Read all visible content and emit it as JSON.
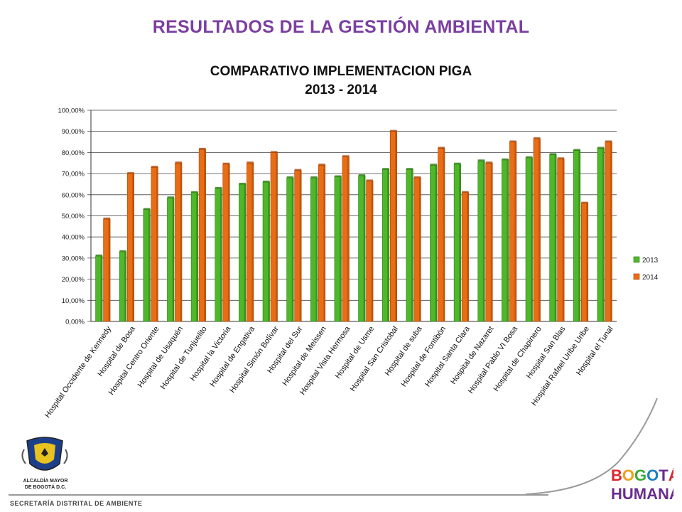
{
  "header": {
    "title": "RESULTADOS DE LA GESTIÓN AMBIENTAL"
  },
  "footer": {
    "left_logo_caption_line1": "ALCALDÍA MAYOR",
    "left_logo_caption_line2": "DE BOGOTÁ D.C.",
    "secretaria": "SECRETARÍA DISTRITAL DE AMBIENTE",
    "right_logo_line1": "BOGOTÁ",
    "right_logo_line2": "HUMANA"
  },
  "colors": {
    "title": "#7b3fa0",
    "series_2013": "#4fb82a",
    "series_2014": "#e96d15",
    "grid": "#444444"
  },
  "chart_data": {
    "type": "bar",
    "title_line1": "COMPARATIVO IMPLEMENTACION PIGA",
    "title_line2": "2013 - 2014",
    "xlabel": "",
    "ylabel": "",
    "ylim": [
      0,
      100
    ],
    "y_ticks": [
      "0,00%",
      "10,00%",
      "20,00%",
      "30,00%",
      "40,00%",
      "50,00%",
      "60,00%",
      "70,00%",
      "80,00%",
      "90,00%",
      "100,00%"
    ],
    "grid": true,
    "legend_position": "right",
    "categories": [
      "Hospital Occidente de Kennedy",
      "Hospital de Bosa",
      "Hospital Centro Oriente",
      "Hospital de Usaquén",
      "Hospital de Tunjuelito",
      "Hospital la Victoria",
      "Hospital de Engativa",
      "Hospital Simón Bolívar",
      "Hospital del Sur",
      "Hospital de Meissen",
      "Hospital Vista Hermosa",
      "Hospital de Usme",
      "Hospital San Cristobal",
      "Hospital de suba",
      "Hospital de Fontibón",
      "Hospital Santa Clara",
      "Hospital de Nazaret",
      "Hospital Pablo VI Bosa",
      "Hospital de Chapinero",
      "Hospital San Blas",
      "Hospital Rafael Uribe Uribe",
      "Hospital el Tunal"
    ],
    "series": [
      {
        "name": "2013",
        "values": [
          31,
          33,
          53,
          58.5,
          61,
          63,
          65,
          66,
          68,
          68,
          68.5,
          69,
          72,
          72,
          74,
          74.5,
          76,
          76.5,
          77.5,
          79,
          81,
          82
        ]
      },
      {
        "name": "2014",
        "values": [
          48.5,
          70,
          73,
          75,
          81.5,
          74.5,
          75,
          80,
          71.5,
          74,
          78,
          66.5,
          90,
          68,
          82,
          61,
          75,
          85,
          86.5,
          77,
          56,
          85
        ]
      }
    ]
  }
}
